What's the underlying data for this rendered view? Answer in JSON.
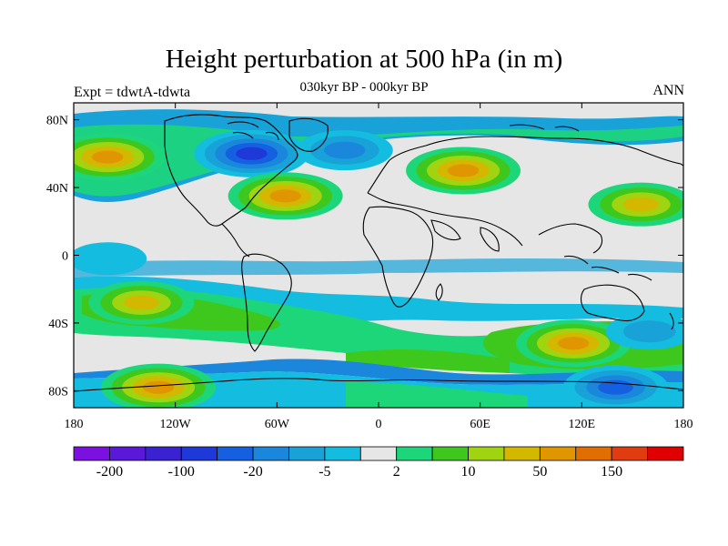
{
  "title": "Height perturbation at 500 hPa (in m)",
  "subtitle": "030kyr BP - 000kyr BP",
  "left_label": "Expt = tdwtA-tdwta",
  "right_label": "ANN",
  "chart_data": {
    "type": "heatmap",
    "projection": "cylindrical equidistant",
    "lon_range": [
      -180,
      180
    ],
    "lat_range": [
      -90,
      90
    ],
    "lat_ticks": [
      {
        "value": 80,
        "label": "80N"
      },
      {
        "value": 40,
        "label": "40N"
      },
      {
        "value": 0,
        "label": "0"
      },
      {
        "value": -40,
        "label": "40S"
      },
      {
        "value": -80,
        "label": "80S"
      }
    ],
    "lon_ticks": [
      {
        "value": -180,
        "label": "180"
      },
      {
        "value": -120,
        "label": "120W"
      },
      {
        "value": -60,
        "label": "60W"
      },
      {
        "value": 0,
        "label": "0"
      },
      {
        "value": 60,
        "label": "60E"
      },
      {
        "value": 120,
        "label": "120E"
      },
      {
        "value": 180,
        "label": "180"
      }
    ],
    "colorbar": {
      "colors": [
        "#7b10e0",
        "#5a18d8",
        "#3a22d0",
        "#1f38d8",
        "#1460e0",
        "#1a86dc",
        "#18a2d8",
        "#14bce0",
        "#e6e6e6",
        "#1ed67a",
        "#3ec81e",
        "#a0d410",
        "#d4b800",
        "#e09600",
        "#e06e00",
        "#e03c10",
        "#e00000"
      ],
      "tick_labels": [
        {
          "boundary": 1,
          "label": "-200"
        },
        {
          "boundary": 3,
          "label": "-100"
        },
        {
          "boundary": 5,
          "label": "-20"
        },
        {
          "boundary": 7,
          "label": "-5"
        },
        {
          "boundary": 9,
          "label": "2"
        },
        {
          "boundary": 11,
          "label": "10"
        },
        {
          "boundary": 13,
          "label": "50"
        },
        {
          "boundary": 15,
          "label": "150"
        }
      ]
    },
    "anomalies": [
      {
        "lon": -160,
        "lat": 58,
        "level": 13,
        "region": "North Pacific / Alaska positive"
      },
      {
        "lon": -75,
        "lat": 60,
        "level": 3,
        "region": "Laurentide / Hudson Bay negative"
      },
      {
        "lon": -55,
        "lat": 35,
        "level": 13,
        "region": "Western North Atlantic positive"
      },
      {
        "lon": 50,
        "lat": 50,
        "level": 13,
        "region": "Eurasia positive"
      },
      {
        "lon": 155,
        "lat": 30,
        "level": 12,
        "region": "Western North Pacific positive"
      },
      {
        "lon": -20,
        "lat": 62,
        "level": 5,
        "region": "North Atlantic negative"
      },
      {
        "lon": 115,
        "lat": -52,
        "level": 13,
        "region": "Southern Indian Ocean positive"
      },
      {
        "lon": -140,
        "lat": -28,
        "level": 12,
        "region": "South Pacific positive"
      },
      {
        "lon": -130,
        "lat": -78,
        "level": 13,
        "region": "West Antarctica positive"
      },
      {
        "lon": 140,
        "lat": -78,
        "level": 4,
        "region": "East Antarctica negative"
      },
      {
        "lon": -160,
        "lat": -2,
        "level": 7,
        "region": "Tropical Pacific negative"
      },
      {
        "lon": 160,
        "lat": -45,
        "level": 6,
        "region": "Tasman negative"
      }
    ]
  }
}
